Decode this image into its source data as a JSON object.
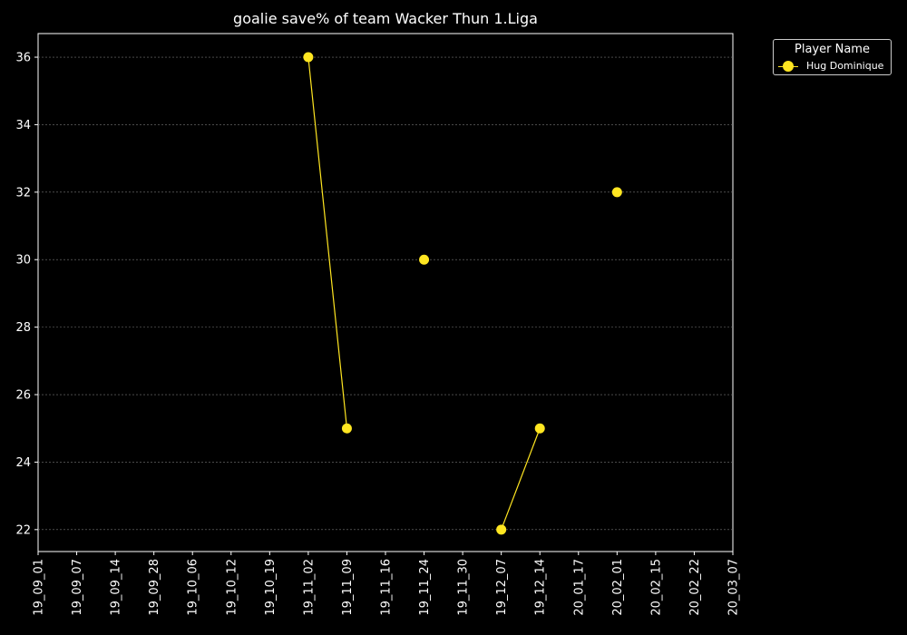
{
  "chart_data": {
    "type": "line",
    "title": "goalie save% of team Wacker Thun 1.Liga",
    "xlabel": "",
    "ylabel": "",
    "x_tick_labels": [
      "19_09_01",
      "19_09_07",
      "19_09_14",
      "19_09_28",
      "19_10_06",
      "19_10_12",
      "19_10_19",
      "19_11_02",
      "19_11_09",
      "19_11_16",
      "19_11_24",
      "19_11_30",
      "19_12_07",
      "19_12_14",
      "20_01_17",
      "20_02_01",
      "20_02_15",
      "20_02_22",
      "20_03_07"
    ],
    "y_ticks": [
      22,
      24,
      26,
      28,
      30,
      32,
      34,
      36
    ],
    "ylim": [
      21.35,
      36.7
    ],
    "grid": true,
    "legend": {
      "title": "Player Name",
      "placement": "top-right outside"
    },
    "series": [
      {
        "name": "Hug Dominique",
        "color": "#FFE621",
        "points": [
          {
            "x": "19_11_02",
            "y": 36
          },
          {
            "x": "19_11_09",
            "y": 25
          },
          {
            "x": "19_11_16",
            "y": null
          },
          {
            "x": "19_11_24",
            "y": 30
          },
          {
            "x": "19_11_30",
            "y": null
          },
          {
            "x": "19_12_07",
            "y": 22
          },
          {
            "x": "19_12_14",
            "y": 25
          },
          {
            "x": "20_01_17",
            "y": null
          },
          {
            "x": "20_02_01",
            "y": 32
          }
        ]
      }
    ]
  }
}
